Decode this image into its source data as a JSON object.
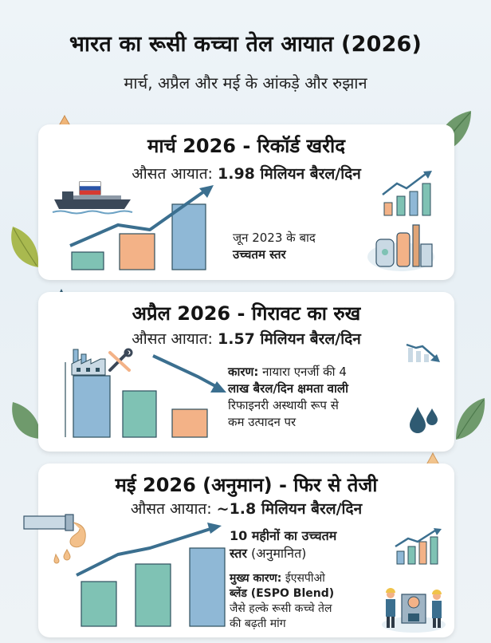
{
  "header": {
    "title": "भारत का रूसी कच्चा तेल आयात (2026)",
    "subtitle": "मार्च, अप्रैल और मई के आंकड़े और रुझान"
  },
  "march": {
    "title": "मार्च 2026 - रिकॉर्ड खरीद",
    "avg_label": "औसत आयात:",
    "avg_value": "1.98 मिलियन बैरल/दिन",
    "note_line1": "जून 2023 के बाद",
    "note_line2": "उच्चतम स्तर"
  },
  "april": {
    "title": "अप्रैल 2026 - गिरावट का रुख",
    "avg_label": "औसत आयात:",
    "avg_value": "1.57 मिलियन बैरल/दिन",
    "reason_label": "कारण:",
    "reason_line1": "नायारा एनर्जी की 4",
    "reason_line2": "लाख बैरल/दिन क्षमता वाली",
    "reason_line3": "रिफाइनरी अस्थायी रूप से",
    "reason_line4": "कम उत्पादन पर"
  },
  "may": {
    "title": "मई 2026 (अनुमान) - फिर से तेजी",
    "avg_label": "औसत आयात:",
    "avg_value": "~1.8 मिलियन बैरल/दिन",
    "high_line1": "10 महीनों का उच्चतम",
    "high_line2": "स्तर",
    "high_paren": "(अनुमानित)",
    "reason_label": "मुख्य कारण:",
    "reason_line1": "ईएसपीओ",
    "reason_line2": "ब्लेंड (ESPO Blend)",
    "reason_line3": "जैसे हल्के रूसी कच्चे तेल",
    "reason_line4": "की बढ़ती मांग"
  },
  "colors": {
    "teal": "#7fc2b4",
    "orange": "#f3b287",
    "blue": "#8fb8d6",
    "arrow": "#3b6f8f",
    "leaf": "#6f9a6c"
  },
  "icons": [
    "oil-tanker-icon",
    "russia-flag-icon",
    "refinery-icon",
    "factory-icon",
    "tools-icon",
    "oil-pipe-icon",
    "workers-icon",
    "trend-up-icon",
    "trend-down-icon",
    "oil-drop-icon",
    "leaf-icon"
  ]
}
